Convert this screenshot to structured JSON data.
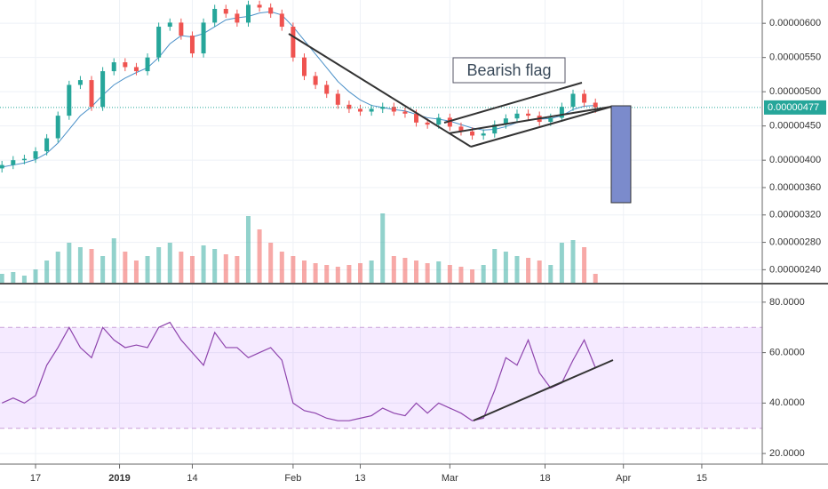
{
  "chart_data": [
    {
      "type": "candlestick",
      "x": [
        -6,
        -4,
        -2,
        0,
        2,
        4,
        6,
        8,
        10,
        12,
        14,
        16,
        18,
        20,
        22,
        24,
        26,
        28,
        30,
        32,
        34,
        36,
        38,
        40,
        42,
        44,
        46,
        48,
        50,
        52,
        54,
        56,
        58,
        60,
        62,
        64,
        66,
        68,
        70,
        72,
        74,
        76,
        78,
        80,
        82,
        84,
        86,
        88,
        90,
        92,
        94,
        96,
        98,
        100
      ],
      "open": [
        3.88e-06,
        3.93e-06,
        4e-06,
        4.02e-06,
        4.13e-06,
        4.32e-06,
        4.65e-06,
        5.1e-06,
        5.17e-06,
        4.78e-06,
        5.3e-06,
        5.43e-06,
        5.36e-06,
        5.3e-06,
        5.5e-06,
        5.95e-06,
        6.01e-06,
        5.82e-06,
        5.56e-06,
        6.01e-06,
        6.21e-06,
        6.14e-06,
        6.01e-06,
        6.27e-06,
        6.23e-06,
        6.14e-06,
        5.95e-06,
        5.5e-06,
        5.23e-06,
        5.1e-06,
        4.97e-06,
        4.81e-06,
        4.75e-06,
        4.71e-06,
        4.75e-06,
        4.78e-06,
        4.71e-06,
        4.68e-06,
        4.55e-06,
        4.52e-06,
        4.62e-06,
        4.49e-06,
        4.42e-06,
        4.36e-06,
        4.39e-06,
        4.52e-06,
        4.61e-06,
        4.68e-06,
        4.65e-06,
        4.56e-06,
        4.62e-06,
        4.78e-06,
        4.97e-06,
        4.84e-06
      ],
      "high": [
        3.99e-06,
        4.06e-06,
        4.08e-06,
        4.19e-06,
        4.38e-06,
        4.71e-06,
        5.16e-06,
        5.23e-06,
        5.23e-06,
        5.36e-06,
        5.49e-06,
        5.49e-06,
        5.42e-06,
        5.56e-06,
        6.01e-06,
        6.07e-06,
        6.07e-06,
        5.88e-06,
        6.07e-06,
        6.27e-06,
        6.27e-06,
        6.2e-06,
        6.33e-06,
        6.33e-06,
        6.29e-06,
        6.2e-06,
        6.01e-06,
        5.56e-06,
        5.29e-06,
        5.16e-06,
        5.03e-06,
        4.87e-06,
        4.81e-06,
        4.81e-06,
        4.84e-06,
        4.84e-06,
        4.77e-06,
        4.74e-06,
        4.61e-06,
        4.68e-06,
        4.68e-06,
        4.55e-06,
        4.48e-06,
        4.45e-06,
        4.58e-06,
        4.67e-06,
        4.74e-06,
        4.74e-06,
        4.71e-06,
        4.68e-06,
        4.84e-06,
        5.03e-06,
        5.03e-06,
        4.9e-06
      ],
      "low": [
        3.82e-06,
        3.87e-06,
        3.94e-06,
        3.96e-06,
        4.07e-06,
        4.26e-06,
        4.59e-06,
        5.04e-06,
        4.72e-06,
        4.72e-06,
        5.24e-06,
        5.3e-06,
        5.24e-06,
        5.24e-06,
        5.44e-06,
        5.89e-06,
        5.76e-06,
        5.5e-06,
        5.5e-06,
        5.95e-06,
        6.08e-06,
        5.95e-06,
        5.95e-06,
        6.17e-06,
        6.08e-06,
        5.89e-06,
        5.44e-06,
        5.17e-06,
        5.04e-06,
        4.91e-06,
        4.75e-06,
        4.69e-06,
        4.65e-06,
        4.65e-06,
        4.69e-06,
        4.65e-06,
        4.62e-06,
        4.49e-06,
        4.46e-06,
        4.46e-06,
        4.43e-06,
        4.36e-06,
        4.3e-06,
        4.3e-06,
        4.33e-06,
        4.46e-06,
        4.55e-06,
        4.59e-06,
        4.5e-06,
        4.5e-06,
        4.56e-06,
        4.72e-06,
        4.78e-06,
        4.69e-06
      ],
      "close": [
        3.93e-06,
        4e-06,
        4.02e-06,
        4.13e-06,
        4.32e-06,
        4.65e-06,
        5.1e-06,
        5.17e-06,
        4.78e-06,
        5.3e-06,
        5.43e-06,
        5.36e-06,
        5.3e-06,
        5.5e-06,
        5.95e-06,
        6.01e-06,
        5.82e-06,
        5.56e-06,
        6.01e-06,
        6.21e-06,
        6.14e-06,
        6.01e-06,
        6.27e-06,
        6.23e-06,
        6.14e-06,
        5.95e-06,
        5.5e-06,
        5.23e-06,
        5.1e-06,
        4.97e-06,
        4.81e-06,
        4.75e-06,
        4.71e-06,
        4.75e-06,
        4.78e-06,
        4.71e-06,
        4.68e-06,
        4.55e-06,
        4.52e-06,
        4.62e-06,
        4.49e-06,
        4.42e-06,
        4.36e-06,
        4.39e-06,
        4.52e-06,
        4.61e-06,
        4.68e-06,
        4.65e-06,
        4.56e-06,
        4.62e-06,
        4.78e-06,
        4.97e-06,
        4.84e-06,
        4.77e-06
      ],
      "volume": [
        10,
        12,
        8,
        15,
        25,
        35,
        45,
        40,
        38,
        30,
        50,
        35,
        25,
        30,
        40,
        45,
        35,
        30,
        42,
        38,
        32,
        30,
        75,
        60,
        45,
        35,
        30,
        25,
        22,
        20,
        18,
        20,
        22,
        25,
        78,
        30,
        28,
        25,
        22,
        24,
        20,
        18,
        15,
        20,
        38,
        35,
        30,
        28,
        25,
        20,
        45,
        48,
        40,
        10
      ],
      "ma": {
        "color": "#4a90c8",
        "values": [
          3.9e-06,
          3.93e-06,
          3.96e-06,
          4.01e-06,
          4.1e-06,
          4.25e-06,
          4.45e-06,
          4.65e-06,
          4.78e-06,
          4.95e-06,
          5.1e-06,
          5.2e-06,
          5.28e-06,
          5.35e-06,
          5.5e-06,
          5.7e-06,
          5.82e-06,
          5.8e-06,
          5.85e-06,
          5.95e-06,
          6.05e-06,
          6.08e-06,
          6.1e-06,
          6.15e-06,
          6.17e-06,
          6.12e-06,
          5.95e-06,
          5.75e-06,
          5.55e-06,
          5.35e-06,
          5.15e-06,
          5e-06,
          4.88e-06,
          4.8e-06,
          4.77e-06,
          4.74e-06,
          4.72e-06,
          4.67e-06,
          4.62e-06,
          4.6e-06,
          4.57e-06,
          4.52e-06,
          4.47e-06,
          4.44e-06,
          4.45e-06,
          4.49e-06,
          4.55e-06,
          4.59e-06,
          4.6e-06,
          4.61e-06,
          4.65e-06,
          4.74e-06,
          4.79e-06,
          4.8e-06
        ]
      },
      "up_color": "#26a69a",
      "down_color": "#ef5350",
      "ylim": [
        2.21e-06,
        6.34e-06
      ],
      "yticks": [
        {
          "value": 6e-06,
          "label": "0.00000600"
        },
        {
          "value": 5.5e-06,
          "label": "0.00000550"
        },
        {
          "value": 5e-06,
          "label": "0.00000500"
        },
        {
          "value": 4.5e-06,
          "label": "0.00000450"
        },
        {
          "value": 4e-06,
          "label": "0.00000400"
        },
        {
          "value": 3.6e-06,
          "label": "0.00000360"
        },
        {
          "value": 3.2e-06,
          "label": "0.00000320"
        },
        {
          "value": 2.8e-06,
          "label": "0.00000280"
        },
        {
          "value": 2.4e-06,
          "label": "0.00000240"
        }
      ],
      "last_price": {
        "value": 4.77e-06,
        "label": "0.00000477"
      },
      "annotation": "Bearish flag",
      "grid": true
    },
    {
      "type": "line",
      "x": [
        -6,
        -4,
        -2,
        0,
        2,
        4,
        6,
        8,
        10,
        12,
        14,
        16,
        18,
        20,
        22,
        24,
        26,
        28,
        30,
        32,
        34,
        36,
        38,
        40,
        42,
        44,
        46,
        48,
        50,
        52,
        54,
        56,
        58,
        60,
        62,
        64,
        66,
        68,
        70,
        72,
        74,
        76,
        78,
        80,
        82,
        84,
        86,
        88,
        90,
        92,
        94,
        96,
        98,
        100
      ],
      "series": [
        {
          "color": "#8e44ad",
          "values": [
            40,
            42,
            40,
            43,
            55,
            62,
            70,
            62,
            58,
            70,
            65,
            62,
            63,
            62,
            70,
            72,
            65,
            60,
            55,
            68,
            62,
            62,
            58,
            60,
            62,
            57,
            40,
            37,
            36,
            34,
            33,
            33,
            34,
            35,
            38,
            36,
            35,
            40,
            36,
            40,
            38,
            36,
            33,
            34,
            45,
            58,
            55,
            65,
            52,
            46,
            48,
            57,
            65,
            54
          ]
        }
      ],
      "ylim": [
        15.8,
        87
      ],
      "yticks": [
        {
          "value": 80,
          "label": "80.0000"
        },
        {
          "value": 60,
          "label": "60.0000"
        },
        {
          "value": 40,
          "label": "40.0000"
        },
        {
          "value": 20,
          "label": "20.0000"
        }
      ],
      "bands": [
        30,
        70
      ],
      "xlim": [
        -6.35,
        129.8
      ],
      "xticks": [
        {
          "value": 0,
          "label": "17"
        },
        {
          "value": 15,
          "label": "2019"
        },
        {
          "value": 28,
          "label": "14"
        },
        {
          "value": 46,
          "label": "Feb"
        },
        {
          "value": 58,
          "label": "13"
        },
        {
          "value": 74,
          "label": "Mar"
        },
        {
          "value": 91,
          "label": "18"
        },
        {
          "value": 105,
          "label": "Apr"
        },
        {
          "value": 119,
          "label": "15"
        }
      ],
      "grid": true
    }
  ]
}
